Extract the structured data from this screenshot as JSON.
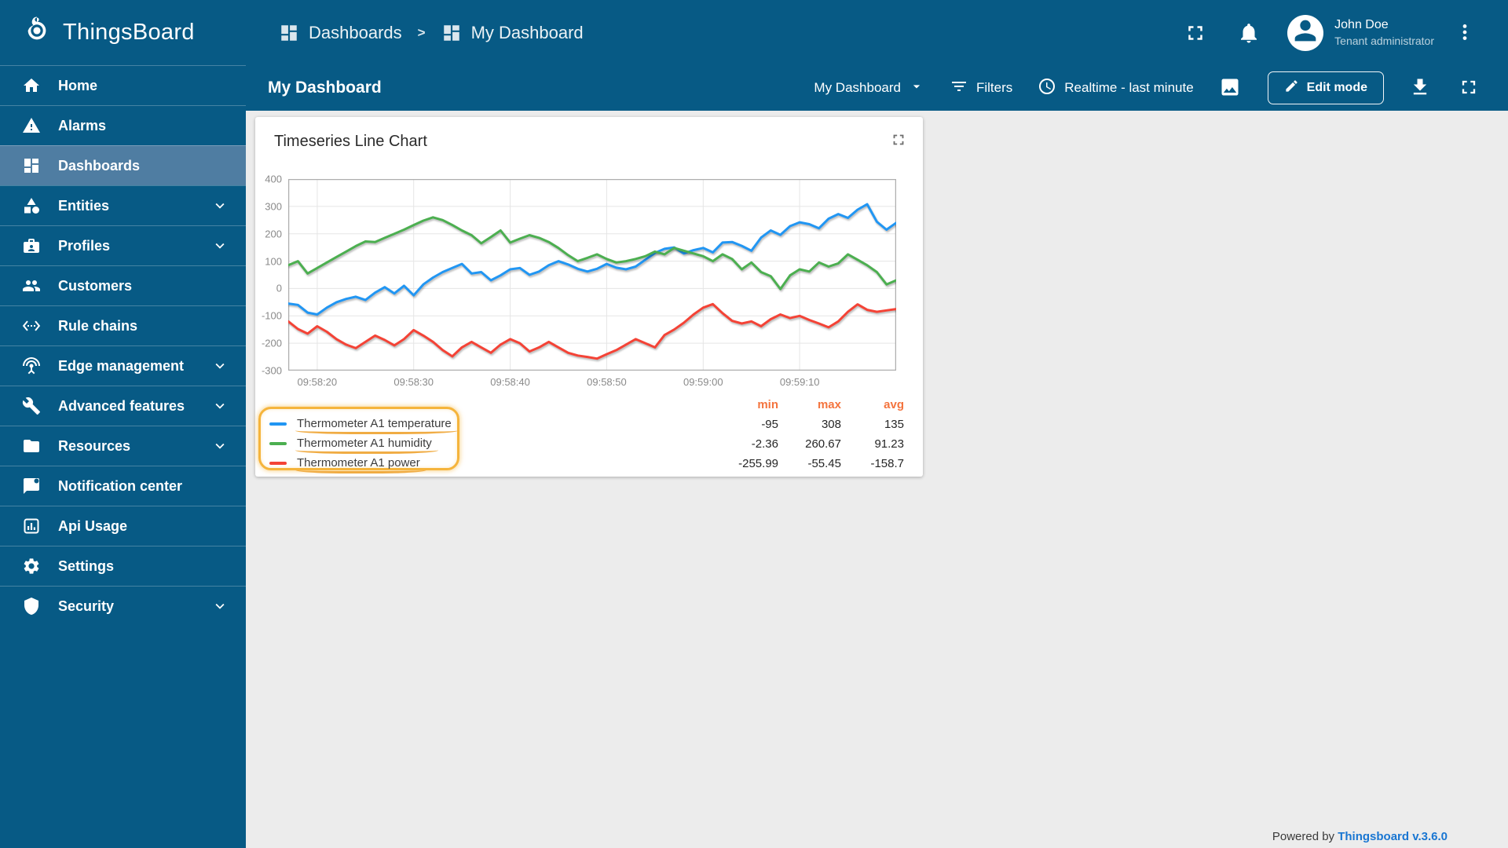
{
  "app": {
    "name": "ThingsBoard"
  },
  "colors": {
    "primary": "#075a85",
    "active_item": "#4f7da2",
    "page_bg": "#ececec",
    "stats_header": "#f4743e",
    "annotation": "#f5b43c",
    "link": "#1976d2"
  },
  "sidebar": {
    "items": [
      {
        "label": "Home",
        "icon": "home",
        "active": false,
        "expandable": false
      },
      {
        "label": "Alarms",
        "icon": "alarm",
        "active": false,
        "expandable": false
      },
      {
        "label": "Dashboards",
        "icon": "dashboard",
        "active": true,
        "expandable": false
      },
      {
        "label": "Entities",
        "icon": "category",
        "active": false,
        "expandable": true
      },
      {
        "label": "Profiles",
        "icon": "badge",
        "active": false,
        "expandable": true
      },
      {
        "label": "Customers",
        "icon": "people",
        "active": false,
        "expandable": false
      },
      {
        "label": "Rule chains",
        "icon": "ethernet",
        "active": false,
        "expandable": false
      },
      {
        "label": "Edge management",
        "icon": "antenna",
        "active": false,
        "expandable": true
      },
      {
        "label": "Advanced features",
        "icon": "build",
        "active": false,
        "expandable": true
      },
      {
        "label": "Resources",
        "icon": "folder",
        "active": false,
        "expandable": true
      },
      {
        "label": "Notification center",
        "icon": "notification",
        "active": false,
        "expandable": false
      },
      {
        "label": "Api Usage",
        "icon": "api",
        "active": false,
        "expandable": false
      },
      {
        "label": "Settings",
        "icon": "settings",
        "active": false,
        "expandable": false
      },
      {
        "label": "Security",
        "icon": "shield",
        "active": false,
        "expandable": true
      }
    ]
  },
  "topbar": {
    "breadcrumb": [
      {
        "label": "Dashboards",
        "icon": "dashboard"
      },
      {
        "label": "My Dashboard",
        "icon": "dashboard"
      }
    ],
    "user": {
      "name": "John Doe",
      "role": "Tenant administrator"
    }
  },
  "toolbar": {
    "title": "My Dashboard",
    "select_value": "My Dashboard",
    "filters_label": "Filters",
    "time_label": "Realtime - last minute",
    "edit_label": "Edit mode"
  },
  "widget": {
    "title": "Timeseries Line Chart"
  },
  "legend": {
    "stats_headers": [
      "min",
      "max",
      "avg"
    ],
    "series": [
      {
        "name": "Thermometer A1 temperature",
        "color": "#2196f3",
        "min": "-95",
        "max": "308",
        "avg": "135"
      },
      {
        "name": "Thermometer A1 humidity",
        "color": "#4caf50",
        "min": "-2.36",
        "max": "260.67",
        "avg": "91.23"
      },
      {
        "name": "Thermometer A1 power",
        "color": "#f44336",
        "min": "-255.99",
        "max": "-55.45",
        "avg": "-158.7"
      }
    ]
  },
  "chart_data": {
    "type": "line",
    "title": "Timeseries Line Chart",
    "xlabel": "",
    "ylabel": "",
    "ylim": [
      -300,
      400
    ],
    "y_ticks": [
      400,
      300,
      200,
      100,
      0,
      -100,
      -200,
      -300
    ],
    "x_tick_labels": [
      "09:58:20",
      "09:58:30",
      "09:58:40",
      "09:58:50",
      "09:59:00",
      "09:59:10"
    ],
    "x_tick_indices": [
      3,
      13,
      23,
      33,
      43,
      53
    ],
    "x_interval_seconds": 1,
    "grid": true,
    "legend_position": "bottom-left",
    "series": [
      {
        "name": "Thermometer A1 temperature",
        "color": "#2196f3",
        "values": [
          -55,
          -60,
          -88,
          -95,
          -70,
          -50,
          -38,
          -30,
          -42,
          -15,
          5,
          -18,
          10,
          -25,
          15,
          40,
          60,
          75,
          90,
          55,
          60,
          30,
          48,
          70,
          75,
          50,
          62,
          85,
          100,
          88,
          72,
          62,
          72,
          90,
          76,
          70,
          80,
          105,
          130,
          145,
          150,
          128,
          140,
          148,
          132,
          168,
          170,
          156,
          138,
          186,
          212,
          196,
          228,
          242,
          235,
          220,
          255,
          272,
          258,
          288,
          308,
          244,
          215,
          240
        ]
      },
      {
        "name": "Thermometer A1 humidity",
        "color": "#4caf50",
        "values": [
          85,
          100,
          55,
          75,
          95,
          115,
          135,
          155,
          172,
          170,
          185,
          200,
          215,
          232,
          248,
          260,
          250,
          232,
          212,
          195,
          165,
          188,
          212,
          168,
          182,
          195,
          185,
          170,
          148,
          122,
          100,
          112,
          125,
          108,
          95,
          100,
          108,
          118,
          135,
          125,
          148,
          138,
          128,
          118,
          100,
          125,
          108,
          70,
          95,
          60,
          45,
          -2,
          48,
          70,
          62,
          95,
          80,
          92,
          125,
          105,
          85,
          60,
          15,
          30
        ]
      },
      {
        "name": "Thermometer A1 power",
        "color": "#f44336",
        "values": [
          -120,
          -148,
          -165,
          -138,
          -158,
          -185,
          -205,
          -218,
          -195,
          -172,
          -188,
          -208,
          -185,
          -152,
          -172,
          -195,
          -225,
          -248,
          -215,
          -195,
          -215,
          -235,
          -205,
          -185,
          -200,
          -230,
          -215,
          -195,
          -215,
          -235,
          -245,
          -250,
          -256,
          -240,
          -225,
          -205,
          -185,
          -200,
          -215,
          -170,
          -150,
          -125,
          -95,
          -70,
          -57,
          -90,
          -118,
          -128,
          -120,
          -138,
          -112,
          -95,
          -108,
          -100,
          -115,
          -128,
          -142,
          -120,
          -85,
          -58,
          -78,
          -85,
          -80,
          -75
        ]
      }
    ]
  },
  "footer": {
    "powered_by": "Powered by",
    "version_link": "Thingsboard v.3.6.0"
  }
}
